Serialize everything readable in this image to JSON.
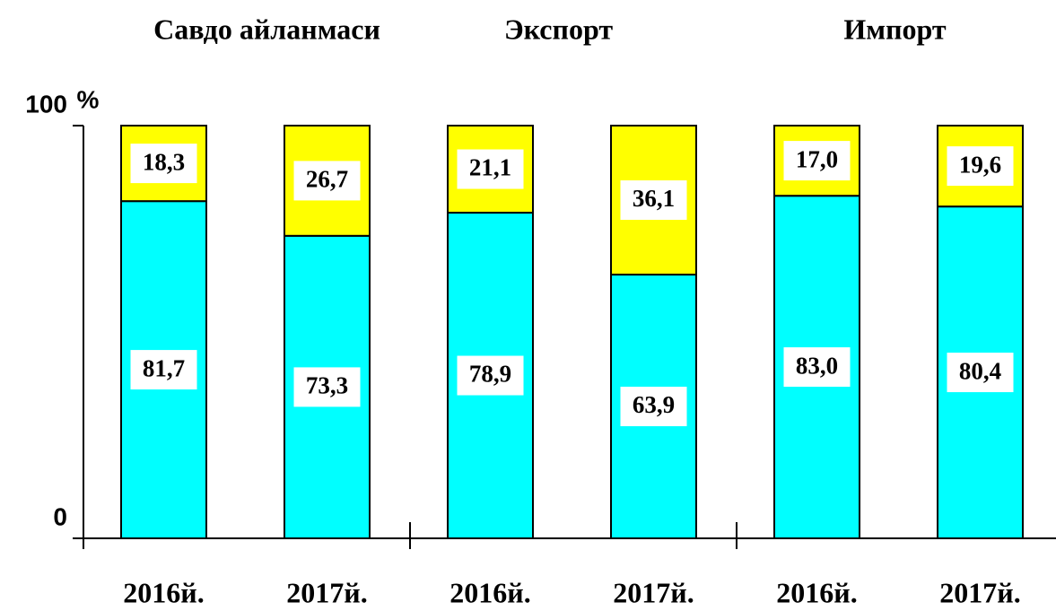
{
  "chart_data": {
    "type": "stacked_bar",
    "y_label": "%",
    "groups": [
      "Савдо айланмаси",
      "Экспорт",
      "Импорт"
    ],
    "categories": [
      "2016й.",
      "2017й.",
      "2016й.",
      "2017й.",
      "2016й.",
      "2017й."
    ],
    "series": [
      {
        "color": "#00ffff",
        "values": [
          81.7,
          73.3,
          78.9,
          63.9,
          83.0,
          80.4
        ],
        "value_labels": [
          "81,7",
          "73,3",
          "78,9",
          "63,9",
          "83,0",
          "80,4"
        ]
      },
      {
        "color": "#ffff00",
        "values": [
          18.3,
          26.7,
          21.1,
          36.1,
          17.0,
          19.6
        ],
        "value_labels": [
          "18,3",
          "26,7",
          "21,1",
          "36,1",
          "17,0",
          "19,6"
        ]
      }
    ],
    "ylim": [
      0,
      100
    ],
    "yticks": [
      0,
      100
    ]
  }
}
